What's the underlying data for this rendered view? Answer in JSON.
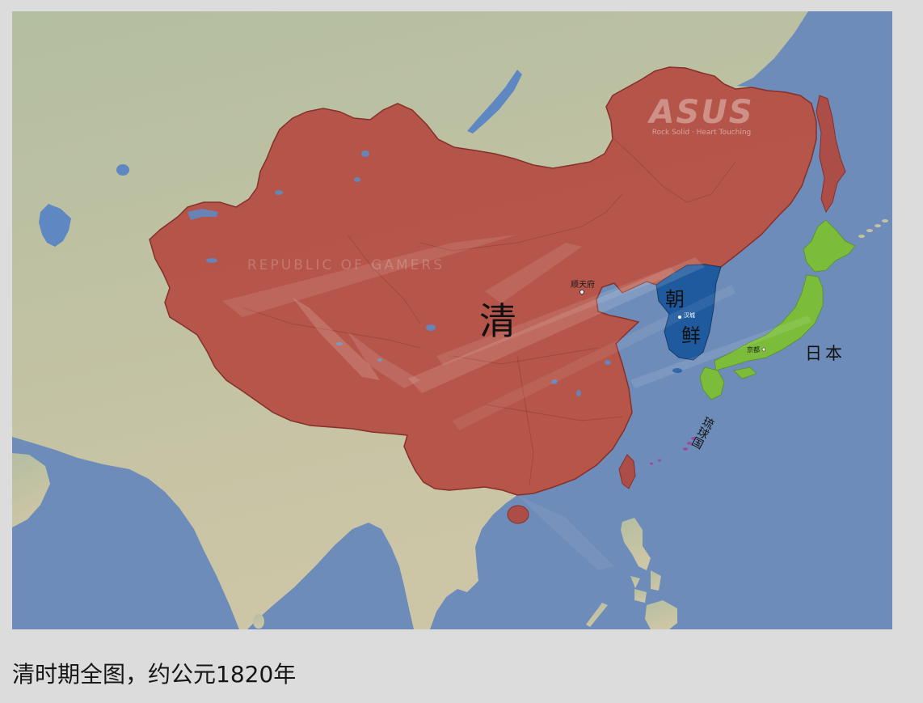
{
  "map": {
    "colors": {
      "ocean": "#6e8cb9",
      "land_north": "#b4bea0",
      "land_south": "#cdc6a6",
      "lake": "#5f88c2",
      "qing": "#b4463c",
      "joseon": "#1f5a9e",
      "japan": "#7bbd3a",
      "ryukyu": "#9a4c9f"
    },
    "labels": {
      "qing": "清",
      "joseon_top": "朝",
      "joseon_bottom": "鲜",
      "joseon_capital": "汉城",
      "qing_capital": "顺天府",
      "japan": "日本",
      "japan_capital": "京都",
      "ryukyu": "琉球国"
    },
    "watermark": {
      "brand": "ASUS",
      "tagline": "Rock Solid · Heart Touching",
      "series": "REPUBLIC OF GAMERS"
    }
  },
  "caption": "清时期全图，约公元1820年"
}
